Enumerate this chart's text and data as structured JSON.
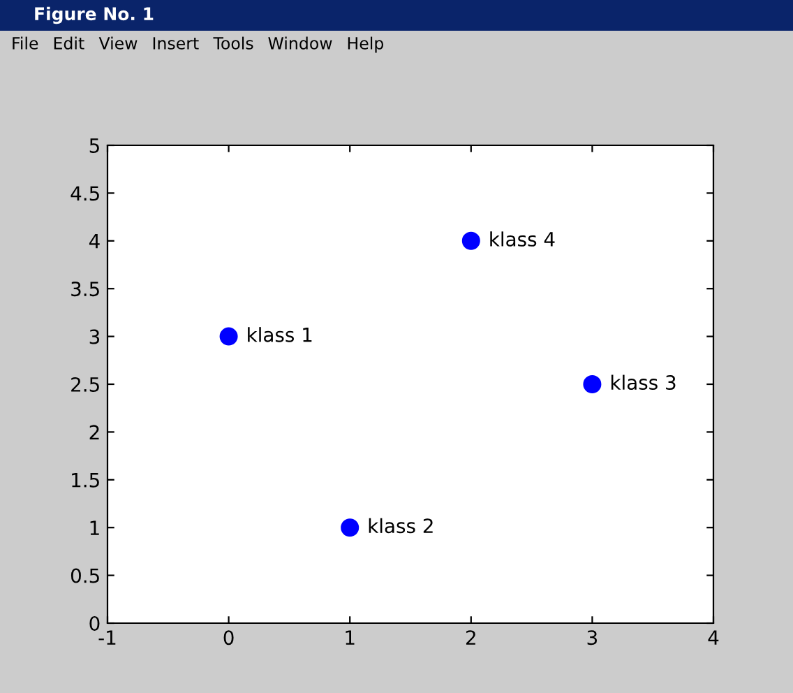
{
  "chart_data": {
    "type": "scatter",
    "title": "Figure No. 1",
    "x": [
      0,
      1,
      3,
      2
    ],
    "series": [
      {
        "color": "#0000ff",
        "values": [
          3,
          1,
          2.5,
          4
        ]
      }
    ],
    "marker": "circle",
    "xlim": [
      -1,
      4
    ],
    "xticks": [
      -1,
      0,
      1,
      2,
      3,
      4
    ],
    "ylim": [
      0,
      5
    ],
    "yticks": [
      0,
      0.5,
      1,
      1.5,
      2,
      2.5,
      3,
      3.5,
      4,
      4.5,
      5
    ],
    "grid": false,
    "legend": false,
    "annotations": [
      {
        "text": "klass 1",
        "x": 0,
        "y": 3
      },
      {
        "text": "klass 2",
        "x": 1,
        "y": 1
      },
      {
        "text": "klass 3",
        "x": 3,
        "y": 2.5
      },
      {
        "text": "klass 4",
        "x": 2,
        "y": 4
      },
      "File",
      "Edit",
      "View",
      "Insert",
      "Tools",
      "Window",
      "Help"
    ]
  }
}
